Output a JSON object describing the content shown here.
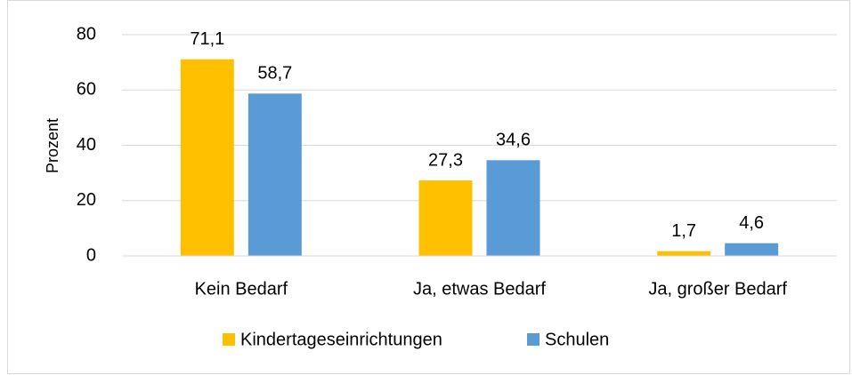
{
  "chart_data": {
    "type": "bar",
    "y_label": "Prozent",
    "categories": [
      "Kein Bedarf",
      "Ja, etwas Bedarf",
      "Ja, großer Bedarf"
    ],
    "series": [
      {
        "name": "Kindertageseinrichtungen",
        "color": "#ffc000",
        "values": [
          71.1,
          27.3,
          1.7
        ],
        "value_labels": [
          "71,1",
          "27,3",
          "1,7"
        ]
      },
      {
        "name": "Schulen",
        "color": "#5b9bd5",
        "values": [
          58.7,
          34.6,
          4.6
        ],
        "value_labels": [
          "58,7",
          "34,6",
          "4,6"
        ]
      }
    ],
    "ylim": [
      0,
      80
    ],
    "yticks": [
      0,
      20,
      40,
      60,
      80
    ],
    "grid": true,
    "legend": "bottom"
  }
}
